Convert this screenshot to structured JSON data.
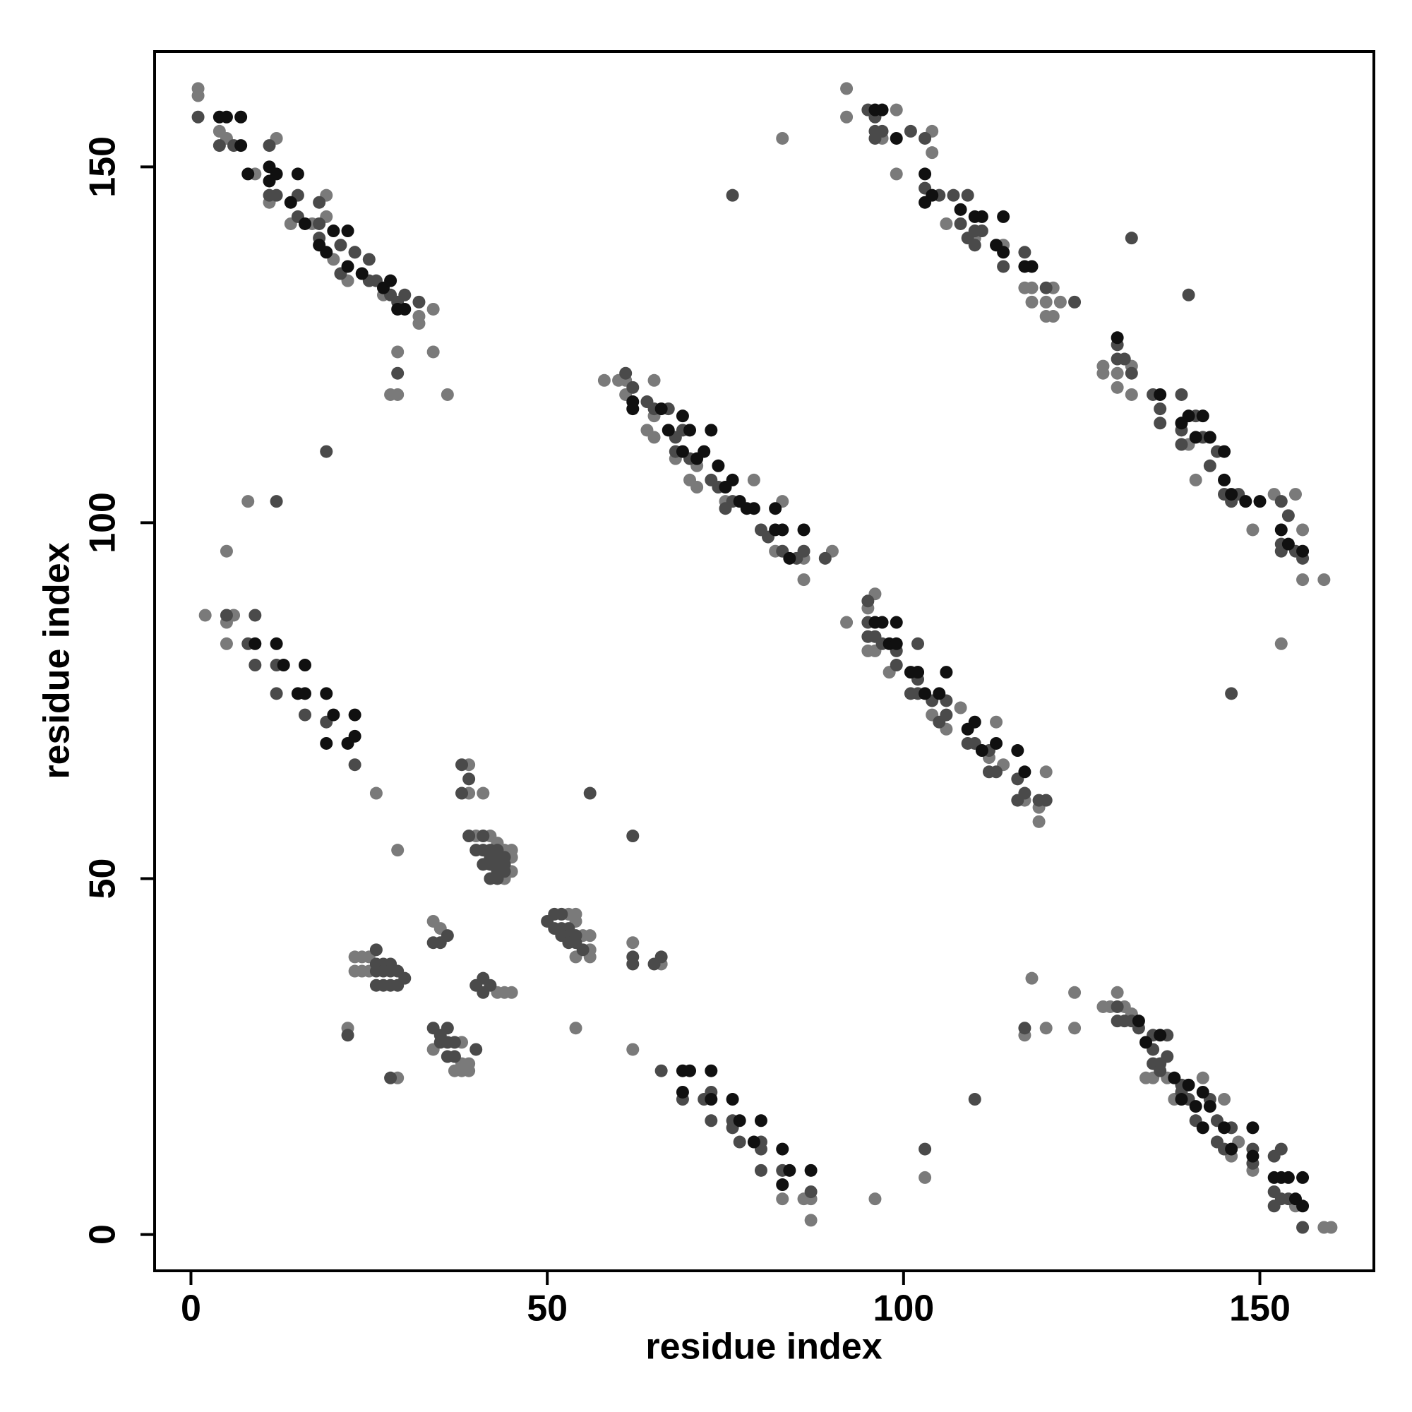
{
  "chart_data": {
    "type": "scatter",
    "xlabel": "residue index",
    "ylabel": "residue index",
    "xlim": [
      -5.1,
      166
    ],
    "ylim": [
      -5.1,
      166.2
    ],
    "xticks": [
      0,
      50,
      100,
      150
    ],
    "yticks": [
      0,
      50,
      100,
      150
    ],
    "series": [
      {
        "color": "#7a7a7a",
        "x": [
          1,
          1,
          4,
          5,
          9,
          12,
          11,
          14,
          17,
          19,
          19,
          20,
          22,
          23,
          27,
          32,
          34,
          32,
          29,
          34,
          28,
          29,
          36,
          8,
          5,
          2,
          6,
          5,
          5,
          26,
          29,
          39,
          39,
          41,
          40,
          42,
          43,
          44,
          45,
          45,
          45,
          44,
          53,
          54,
          54,
          55,
          56,
          56,
          54,
          56,
          62,
          66,
          23,
          24,
          25,
          23,
          24,
          25,
          34,
          35,
          43,
          44,
          45,
          34,
          38,
          38,
          39,
          37,
          38,
          39,
          22,
          29,
          54,
          62,
          83,
          86,
          87,
          87,
          96,
          103,
          58,
          60,
          61,
          61,
          65,
          64,
          65,
          65,
          68,
          71,
          70,
          71,
          75,
          79,
          83,
          86,
          82,
          90,
          86,
          92,
          96,
          95,
          96,
          95,
          98,
          102,
          108,
          104,
          106,
          113,
          112,
          114,
          117,
          119,
          119,
          120,
          92,
          92,
          99,
          97,
          104,
          104,
          99,
          106,
          110,
          114,
          117,
          118,
          121,
          118,
          120,
          122,
          120,
          121,
          83,
          128,
          128,
          130,
          132,
          130,
          132,
          139,
          140,
          141,
          143,
          152,
          155,
          156,
          149,
          156,
          159,
          153,
          118,
          117,
          120,
          124,
          124,
          128,
          129,
          131,
          130,
          132,
          134,
          135,
          137,
          138,
          142,
          145,
          147,
          146,
          149,
          155,
          159,
          160
        ],
        "values": [
          161,
          160,
          155,
          154,
          149,
          154,
          145,
          142,
          142,
          146,
          143,
          137,
          134,
          138,
          132,
          129,
          130,
          128,
          124,
          124,
          118,
          118,
          118,
          103,
          96,
          87,
          87,
          86,
          83,
          62,
          54,
          66,
          62,
          62,
          56,
          56,
          55,
          54,
          54,
          53,
          51,
          50,
          45,
          45,
          44,
          42,
          42,
          40,
          39,
          39,
          41,
          38,
          39,
          39,
          39,
          37,
          37,
          37,
          44,
          43,
          34,
          34,
          34,
          26,
          27,
          24,
          24,
          23,
          23,
          23,
          29,
          22,
          29,
          26,
          5,
          5,
          5,
          2,
          5,
          8,
          120,
          120,
          120,
          118,
          120,
          113,
          112,
          115,
          109,
          108,
          106,
          105,
          103,
          106,
          103,
          95,
          96,
          96,
          92,
          86,
          90,
          88,
          82,
          82,
          79,
          79,
          74,
          73,
          71,
          72,
          67,
          66,
          61,
          60,
          58,
          65,
          161,
          157,
          158,
          154,
          155,
          152,
          149,
          142,
          140,
          139,
          133,
          133,
          133,
          131,
          131,
          131,
          129,
          129,
          154,
          121,
          122,
          121,
          122,
          119,
          118,
          114,
          111,
          106,
          112,
          104,
          104,
          99,
          99,
          92,
          92,
          83,
          36,
          28,
          29,
          29,
          34,
          32,
          32,
          32,
          34,
          31,
          22,
          22,
          22,
          19,
          22,
          19,
          13,
          11,
          9,
          4,
          1,
          1
        ]
      },
      {
        "color": "#4a4a4a",
        "x": [
          1,
          4,
          6,
          11,
          11,
          12,
          15,
          15,
          18,
          18,
          18,
          21,
          21,
          23,
          25,
          25,
          26,
          28,
          29,
          30,
          32,
          29,
          19,
          12,
          5,
          9,
          8,
          9,
          12,
          12,
          16,
          19,
          23,
          38,
          39,
          38,
          39,
          41,
          40,
          41,
          42,
          43,
          42,
          43,
          44,
          41,
          42,
          43,
          44,
          43,
          44,
          42,
          43,
          56,
          62,
          50,
          51,
          52,
          51,
          52,
          53,
          52,
          53,
          54,
          53,
          54,
          55,
          62,
          62,
          65,
          66,
          26,
          26,
          27,
          28,
          26,
          27,
          28,
          29,
          30,
          26,
          27,
          28,
          29,
          34,
          35,
          36,
          41,
          42,
          40,
          41,
          34,
          35,
          36,
          35,
          36,
          37,
          36,
          37,
          40,
          22,
          28,
          66,
          69,
          72,
          73,
          76,
          73,
          76,
          80,
          77,
          80,
          80,
          83,
          87,
          103,
          110,
          61,
          62,
          65,
          64,
          67,
          68,
          69,
          68,
          70,
          73,
          74,
          76,
          75,
          80,
          81,
          83,
          85,
          86,
          89,
          95,
          95,
          95,
          96,
          97,
          99,
          102,
          99,
          102,
          101,
          102,
          104,
          106,
          105,
          106,
          109,
          110,
          112,
          113,
          112,
          116,
          117,
          116,
          119,
          120,
          95,
          96,
          96,
          97,
          96,
          101,
          103,
          103,
          105,
          107,
          109,
          108,
          110,
          111,
          110,
          109,
          114,
          117,
          120,
          124,
          76,
          132,
          140,
          130,
          130,
          131,
          132,
          135,
          136,
          136,
          139,
          141,
          139,
          139,
          142,
          143,
          144,
          145,
          147,
          146,
          153,
          154,
          153,
          155,
          156,
          153,
          146,
          117,
          130,
          130,
          131,
          132,
          133,
          135,
          137,
          135,
          135,
          136,
          137,
          136,
          139,
          139,
          140,
          143,
          141,
          144,
          146,
          144,
          145,
          149,
          149,
          153,
          152,
          152,
          153,
          154,
          152,
          156
        ],
        "values": [
          157,
          153,
          153,
          153,
          146,
          146,
          146,
          143,
          145,
          142,
          140,
          139,
          135,
          138,
          137,
          134,
          134,
          132,
          131,
          132,
          131,
          121,
          110,
          103,
          87,
          87,
          83,
          80,
          80,
          76,
          73,
          72,
          66,
          66,
          64,
          62,
          56,
          56,
          54,
          54,
          54,
          54,
          53,
          53,
          53,
          52,
          52,
          52,
          52,
          51,
          51,
          50,
          50,
          62,
          56,
          44,
          45,
          45,
          43,
          43,
          43,
          42,
          42,
          42,
          41,
          41,
          40,
          39,
          38,
          38,
          39,
          40,
          38,
          38,
          38,
          37,
          37,
          37,
          37,
          36,
          35,
          35,
          35,
          35,
          41,
          41,
          42,
          36,
          35,
          35,
          34,
          29,
          28,
          29,
          27,
          27,
          27,
          25,
          25,
          26,
          28,
          22,
          23,
          19,
          19,
          20,
          16,
          16,
          15,
          13,
          13,
          12,
          9,
          9,
          6,
          12,
          19,
          121,
          119,
          116,
          117,
          116,
          112,
          113,
          110,
          109,
          106,
          105,
          103,
          102,
          99,
          98,
          96,
          95,
          96,
          95,
          89,
          86,
          84,
          84,
          83,
          82,
          83,
          80,
          78,
          76,
          76,
          75,
          75,
          72,
          73,
          69,
          69,
          68,
          65,
          65,
          64,
          62,
          61,
          61,
          61,
          158,
          157,
          155,
          155,
          154,
          155,
          154,
          147,
          146,
          146,
          146,
          142,
          141,
          141,
          139,
          140,
          136,
          138,
          133,
          131,
          146,
          140,
          132,
          125,
          123,
          123,
          121,
          118,
          116,
          114,
          118,
          115,
          113,
          111,
          112,
          108,
          110,
          104,
          104,
          103,
          103,
          101,
          97,
          96,
          95,
          96,
          76,
          29,
          32,
          30,
          30,
          30,
          29,
          28,
          28,
          26,
          24,
          24,
          25,
          23,
          21,
          20,
          19,
          19,
          16,
          16,
          15,
          13,
          12,
          12,
          10,
          12,
          11,
          6,
          5,
          5,
          4,
          1
        ]
      },
      {
        "color": "#101010",
        "x": [
          4,
          5,
          7,
          7,
          8,
          11,
          12,
          11,
          15,
          14,
          16,
          18,
          19,
          20,
          22,
          22,
          24,
          27,
          28,
          29,
          30,
          9,
          12,
          13,
          16,
          15,
          16,
          19,
          20,
          23,
          22,
          23,
          19,
          69,
          70,
          73,
          69,
          73,
          76,
          77,
          80,
          79,
          83,
          84,
          87,
          83,
          62,
          62,
          66,
          67,
          69,
          70,
          73,
          69,
          71,
          72,
          74,
          76,
          77,
          75,
          78,
          79,
          82,
          82,
          83,
          84,
          86,
          96,
          97,
          99,
          98,
          99,
          101,
          102,
          103,
          105,
          106,
          109,
          110,
          111,
          113,
          116,
          117,
          96,
          97,
          99,
          103,
          104,
          103,
          108,
          110,
          111,
          114,
          113,
          114,
          117,
          118,
          130,
          136,
          139,
          140,
          141,
          142,
          143,
          145,
          146,
          145,
          148,
          150,
          153,
          154,
          156,
          133,
          134,
          136,
          138,
          139,
          140,
          141,
          142,
          143,
          142,
          145,
          149,
          146,
          149,
          152,
          153,
          154,
          156,
          155,
          156
        ],
        "values": [
          157,
          157,
          157,
          153,
          149,
          150,
          149,
          148,
          149,
          145,
          142,
          139,
          138,
          141,
          141,
          136,
          135,
          133,
          134,
          130,
          130,
          83,
          83,
          80,
          80,
          76,
          76,
          76,
          73,
          73,
          69,
          70,
          69,
          23,
          23,
          23,
          20,
          19,
          19,
          16,
          16,
          13,
          12,
          9,
          9,
          7,
          117,
          116,
          116,
          113,
          115,
          113,
          113,
          110,
          109,
          110,
          108,
          106,
          103,
          105,
          102,
          102,
          102,
          99,
          99,
          95,
          99,
          86,
          86,
          86,
          83,
          83,
          79,
          79,
          76,
          76,
          79,
          71,
          72,
          68,
          69,
          68,
          65,
          158,
          158,
          154,
          149,
          146,
          145,
          144,
          143,
          143,
          143,
          139,
          138,
          136,
          136,
          126,
          118,
          114,
          115,
          112,
          115,
          112,
          110,
          104,
          106,
          103,
          103,
          99,
          97,
          96,
          30,
          27,
          28,
          22,
          19,
          21,
          18,
          20,
          18,
          15,
          15,
          15,
          12,
          11,
          8,
          8,
          8,
          8,
          5,
          4
        ]
      }
    ]
  }
}
